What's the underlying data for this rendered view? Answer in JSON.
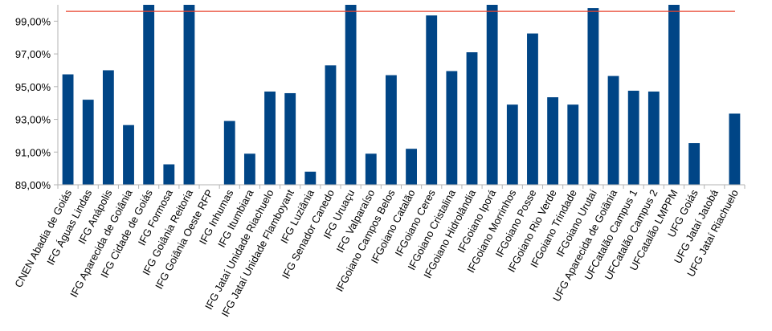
{
  "chart_data": {
    "type": "bar",
    "title": "",
    "xlabel": "",
    "ylabel": "",
    "ylim": [
      89,
      100
    ],
    "yticks": [
      "89,00%",
      "91,00%",
      "93,00%",
      "95,00%",
      "97,00%",
      "99,00%"
    ],
    "ytick_values": [
      89,
      91,
      93,
      95,
      97,
      99
    ],
    "grid": false,
    "legend": "none",
    "reference_line": {
      "value": 99.6,
      "color": "#e8442e"
    },
    "bar_color": "#004586",
    "categories": [
      "CNEN Abadia de Goiás",
      "IFG Águas Lindas",
      "IFG Anápolis",
      "IFG Aparecida de Goiânia",
      "IFG Cidade de Goiás",
      "IFG Formosa",
      "IFG Goiânia Reitoria",
      "IFG Goiânia Oeste RFP",
      "IFG Inhumas",
      "IFG Itumbiara",
      "IFG Jataí Unidade Riachuelo",
      "IFG Jataí Unidade Flamboyant",
      "IFG Luziânia",
      "IFG Senador Canedo",
      "IFG Uruaçu",
      "IFG Valparaíso",
      "IFGoiano Campos Belos",
      "IFGoiano Catalão",
      "IFGoiano Ceres",
      "IFGoiano Cristalina",
      "IFGoiano Hidrolândia",
      "IFGoiano Iporá",
      "IFGoiano Morrinhos",
      "IFGoiano Posse",
      "IFGoiano Rio Verde",
      "IFGoiano Trindade",
      "IFGoiano Urutaí",
      "UFG Aparecida de Goiânia",
      "UFCatalão Campus 1",
      "UFCatalão Campus 2",
      "UFCatalão LMPPM",
      "UFG Goiás",
      "UFG Jataí Jatobá",
      "UFG Jataí Riachuelo"
    ],
    "values": [
      95.75,
      94.2,
      96.0,
      92.65,
      100,
      90.25,
      100,
      null,
      92.9,
      90.9,
      94.7,
      94.6,
      89.8,
      96.3,
      100,
      90.9,
      95.7,
      91.2,
      99.35,
      95.95,
      97.1,
      100,
      93.9,
      98.25,
      94.35,
      93.9,
      99.8,
      95.65,
      94.75,
      94.7,
      100,
      91.55,
      null,
      93.35
    ]
  }
}
